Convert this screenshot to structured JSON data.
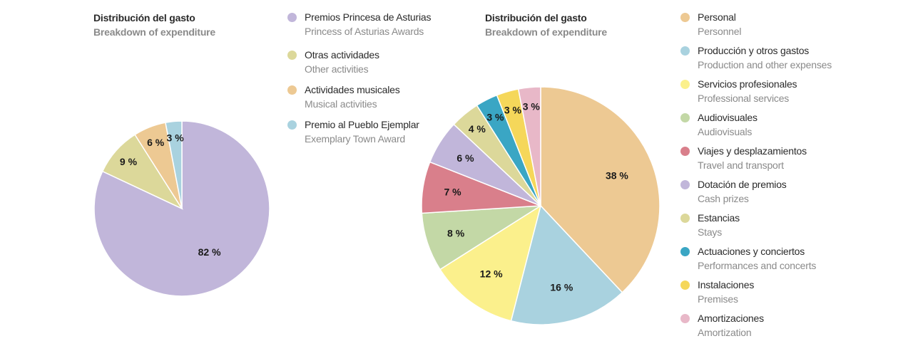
{
  "chart_data": [
    {
      "type": "pie",
      "title": "Distribución del gasto",
      "subtitle": "Breakdown of expenditure",
      "slices": [
        {
          "label": "Premios Princesa de Asturias",
          "label_en": "Princess of Asturias Awards",
          "value": 82,
          "display": "82 %",
          "color": "#c1b6da"
        },
        {
          "label": "Otras actividades",
          "label_en": "Other activities",
          "value": 9,
          "display": "9 %",
          "color": "#dcd89a"
        },
        {
          "label": "Actividades musicales",
          "label_en": "Musical activities",
          "value": 6,
          "display": "6 %",
          "color": "#edc993"
        },
        {
          "label": "Premio al Pueblo Ejemplar",
          "label_en": "Exemplary Town Award",
          "value": 3,
          "display": "3 %",
          "color": "#a9d2df"
        }
      ]
    },
    {
      "type": "pie",
      "title": "Distribución del gasto",
      "subtitle": "Breakdown of expenditure",
      "slices": [
        {
          "label": "Personal",
          "label_en": "Personnel",
          "value": 38,
          "display": "38 %",
          "color": "#edc993"
        },
        {
          "label": "Producción y otros gastos",
          "label_en": "Production and other expenses",
          "value": 16,
          "display": "16 %",
          "color": "#a9d2df"
        },
        {
          "label": "Servicios profesionales",
          "label_en": "Professional services",
          "value": 12,
          "display": "12 %",
          "color": "#fbf08c"
        },
        {
          "label": "Audiovisuales",
          "label_en": "Audiovisuals",
          "value": 8,
          "display": "8 %",
          "color": "#c3d8a6"
        },
        {
          "label": "Viajes y desplazamientos",
          "label_en": "Travel and transport",
          "value": 7,
          "display": "7 %",
          "color": "#d97f8b"
        },
        {
          "label": "Dotación de premios",
          "label_en": "Cash prizes",
          "value": 6,
          "display": "6 %",
          "color": "#c1b6da"
        },
        {
          "label": "Estancias",
          "label_en": "Stays",
          "value": 4,
          "display": "4 %",
          "color": "#dcd89a"
        },
        {
          "label": "Actuaciones y conciertos",
          "label_en": "Performances and concerts",
          "value": 3,
          "display": "3 %",
          "color": "#3aa6c4"
        },
        {
          "label": "Instalaciones",
          "label_en": "Premises",
          "value": 3,
          "display": "3 %",
          "color": "#f5d75a"
        },
        {
          "label": "Amortizaciones",
          "label_en": "Amortization",
          "value": 3,
          "display": "3 %",
          "color": "#e8b8c8"
        }
      ]
    }
  ]
}
